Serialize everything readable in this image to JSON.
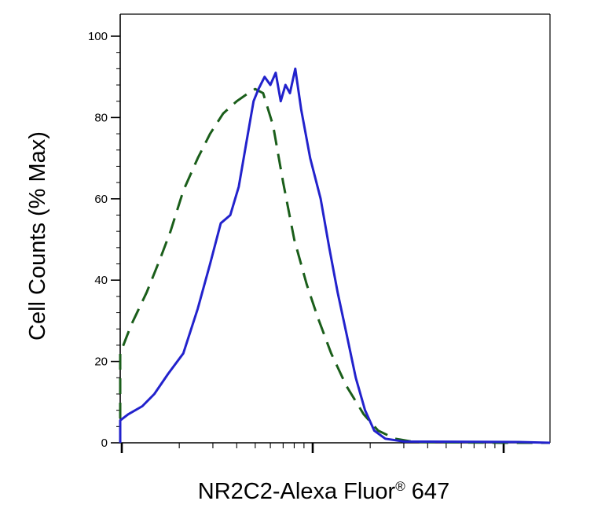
{
  "chart_data": {
    "type": "line",
    "title": "",
    "xlabel": "NR2C2-Alexa Fluor",
    "xlabel_superscript": "®",
    "xlabel_suffix": " 647",
    "ylabel": "Cell Counts (% Max)",
    "x_scale": "log",
    "x_tick_labels_shown": false,
    "ylim": [
      0,
      100
    ],
    "y_ticks": [
      0,
      20,
      40,
      60,
      80,
      100
    ],
    "y_tick_labels": [
      "0",
      "20",
      "40",
      "60",
      "80",
      "100"
    ],
    "grid": false,
    "legend": "none",
    "series": [
      {
        "line_style": "dashed",
        "color": "#1a5e1a",
        "points": [
          [
            0.0026,
            0.0
          ],
          [
            0.0028,
            0.8
          ],
          [
            0.0035,
            0.8
          ],
          [
            0.0045,
            2
          ],
          [
            0.0052,
            4.5
          ],
          [
            0.0058,
            8.5
          ],
          [
            0.0066,
            9.5
          ],
          [
            0.0075,
            13
          ],
          [
            0.0085,
            17
          ],
          [
            0.0095,
            22
          ],
          [
            0.0112,
            29
          ],
          [
            0.0135,
            37
          ],
          [
            0.0158,
            45
          ],
          [
            0.018,
            52
          ],
          [
            0.021,
            62
          ],
          [
            0.025,
            70
          ],
          [
            0.029,
            76
          ],
          [
            0.034,
            81
          ],
          [
            0.04,
            84
          ],
          [
            0.046,
            86
          ],
          [
            0.05,
            87
          ],
          [
            0.055,
            86
          ],
          [
            0.062,
            78
          ],
          [
            0.07,
            64
          ],
          [
            0.08,
            50
          ],
          [
            0.093,
            39
          ],
          [
            0.106,
            31
          ],
          [
            0.125,
            22
          ],
          [
            0.15,
            14
          ],
          [
            0.185,
            7
          ],
          [
            0.22,
            3
          ],
          [
            0.27,
            1
          ],
          [
            0.34,
            0.2
          ],
          [
            1.0,
            0.0
          ],
          [
            9.0,
            0.0
          ]
        ]
      },
      {
        "line_style": "solid",
        "color": "#2222cc",
        "points": [
          [
            0.0009,
            0.0
          ],
          [
            0.002,
            0.5
          ],
          [
            0.0035,
            1
          ],
          [
            0.005,
            1.5
          ],
          [
            0.0058,
            2
          ],
          [
            0.0066,
            2.5
          ],
          [
            0.008,
            3
          ],
          [
            0.0093,
            5.5
          ],
          [
            0.0108,
            7
          ],
          [
            0.0128,
            9
          ],
          [
            0.0148,
            12
          ],
          [
            0.0175,
            17
          ],
          [
            0.021,
            22
          ],
          [
            0.025,
            33
          ],
          [
            0.029,
            44
          ],
          [
            0.033,
            54
          ],
          [
            0.037,
            56
          ],
          [
            0.041,
            63
          ],
          [
            0.045,
            74
          ],
          [
            0.049,
            84
          ],
          [
            0.052,
            87
          ],
          [
            0.056,
            90
          ],
          [
            0.06,
            88
          ],
          [
            0.064,
            91
          ],
          [
            0.068,
            84
          ],
          [
            0.072,
            88
          ],
          [
            0.076,
            86
          ],
          [
            0.081,
            92
          ],
          [
            0.087,
            82
          ],
          [
            0.097,
            70
          ],
          [
            0.11,
            60
          ],
          [
            0.122,
            48
          ],
          [
            0.135,
            37
          ],
          [
            0.15,
            27
          ],
          [
            0.168,
            16
          ],
          [
            0.188,
            8
          ],
          [
            0.21,
            3
          ],
          [
            0.24,
            1
          ],
          [
            0.3,
            0.3
          ],
          [
            1.2,
            0.2
          ],
          [
            3.0,
            0.0
          ],
          [
            9.0,
            0.0
          ]
        ]
      }
    ]
  }
}
